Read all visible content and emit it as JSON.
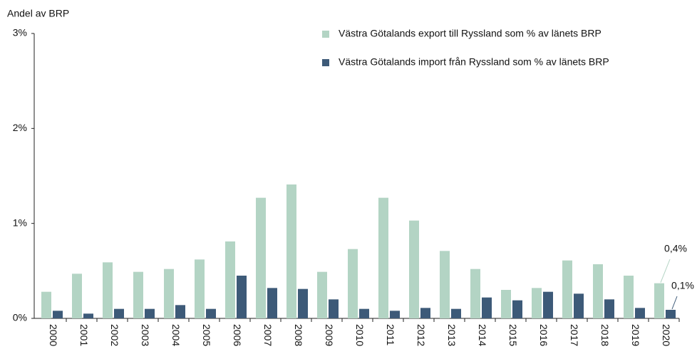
{
  "chart_data": {
    "type": "bar",
    "y_label": "Andel av BRP",
    "categories": [
      "2000",
      "2001",
      "2002",
      "2003",
      "2004",
      "2005",
      "2006",
      "2007",
      "2008",
      "2009",
      "2010",
      "2011",
      "2012",
      "2013",
      "2014",
      "2015",
      "2016",
      "2017",
      "2018",
      "2019",
      "2020"
    ],
    "series": [
      {
        "name": "Västra Götalands export till Ryssland som % av länets BRP",
        "color": "#b3d4c4",
        "values": [
          0.28,
          0.47,
          0.59,
          0.49,
          0.52,
          0.62,
          0.81,
          1.27,
          1.41,
          0.49,
          0.73,
          1.27,
          1.03,
          0.71,
          0.52,
          0.3,
          0.32,
          0.61,
          0.57,
          0.45,
          0.37
        ],
        "value_labels": [
          null,
          null,
          null,
          null,
          null,
          null,
          null,
          null,
          null,
          null,
          null,
          null,
          null,
          null,
          null,
          null,
          null,
          null,
          null,
          null,
          "0,4%"
        ]
      },
      {
        "name": "Västra Götalands import från Ryssland som % av länets BRP",
        "color": "#3d5a78",
        "values": [
          0.08,
          0.05,
          0.1,
          0.1,
          0.14,
          0.1,
          0.45,
          0.32,
          0.31,
          0.2,
          0.1,
          0.08,
          0.11,
          0.1,
          0.22,
          0.19,
          0.28,
          0.26,
          0.2,
          0.11,
          0.09
        ],
        "value_labels": [
          null,
          null,
          null,
          null,
          null,
          null,
          null,
          null,
          null,
          null,
          null,
          null,
          null,
          null,
          null,
          null,
          null,
          null,
          null,
          null,
          "0,1%"
        ]
      }
    ],
    "ylim": [
      0,
      3
    ],
    "yticks": [
      {
        "value": 0,
        "label": "0%"
      },
      {
        "value": 1,
        "label": "1%"
      },
      {
        "value": 2,
        "label": "2%"
      },
      {
        "value": 3,
        "label": "3%"
      }
    ],
    "grid": false,
    "legend": "top-right"
  }
}
